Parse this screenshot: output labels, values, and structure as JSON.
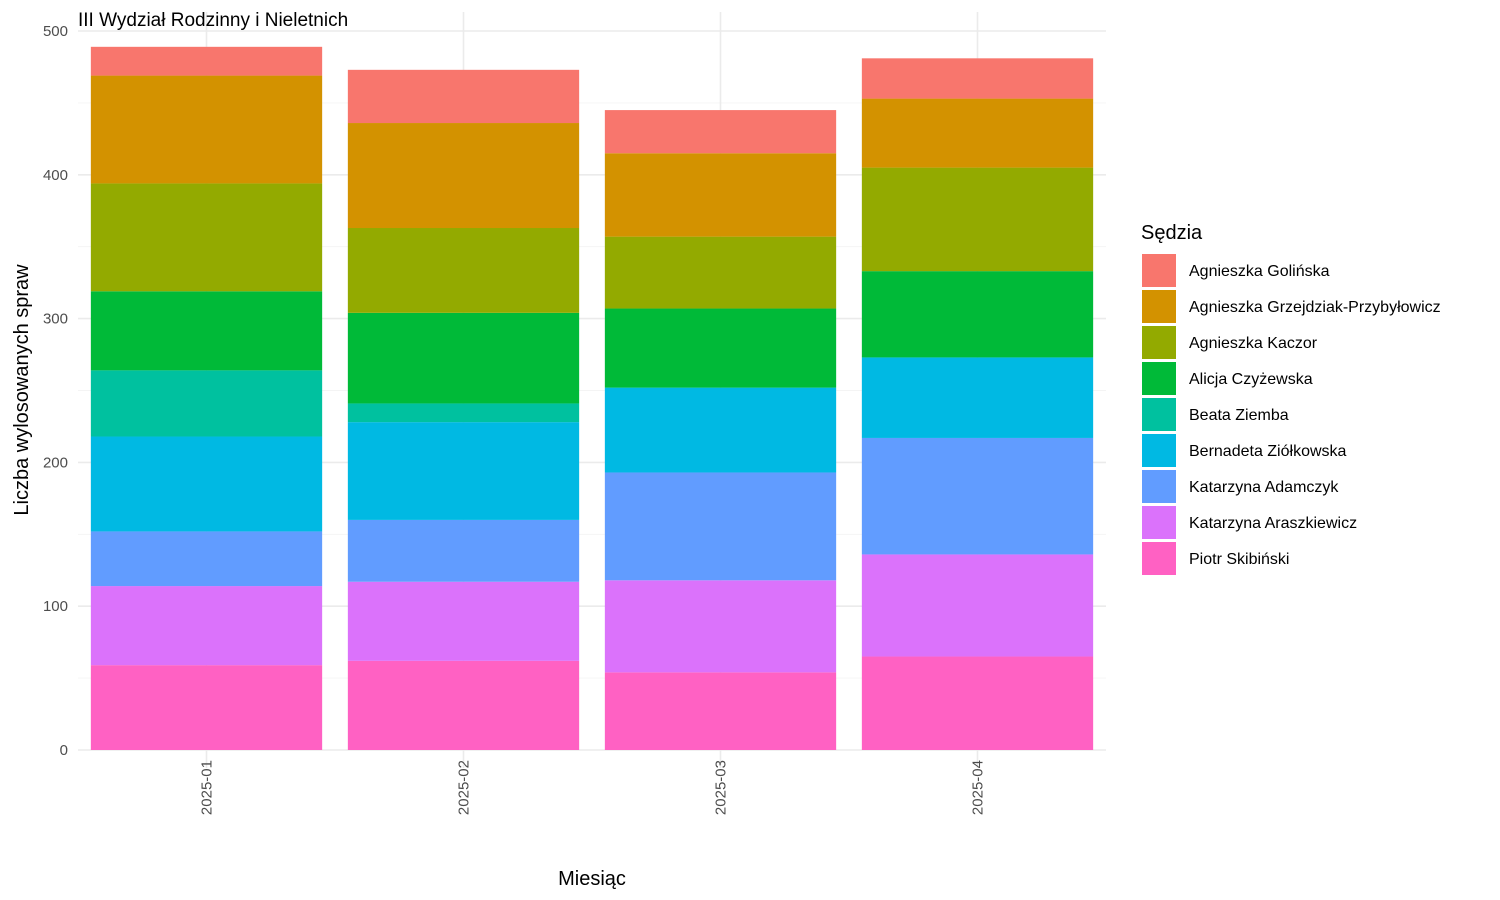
{
  "chart_data": {
    "type": "bar",
    "stacked": true,
    "title": "III Wydział Rodzinny i Nieletnich",
    "xlabel": "Miesiąc",
    "ylabel": "Liczba wylosowanych spraw",
    "ylim": [
      0,
      500
    ],
    "yticks": [
      0,
      100,
      200,
      300,
      400,
      500
    ],
    "grid": true,
    "legend_title": "Sędzia",
    "legend_position": "right",
    "categories": [
      "2025-01",
      "2025-02",
      "2025-03",
      "2025-04"
    ],
    "series": [
      {
        "name": "Agnieszka Golińska",
        "color": "#F8766D",
        "values": [
          20,
          37,
          30,
          28
        ]
      },
      {
        "name": "Agnieszka Grzejdziak-Przybyłowicz",
        "color": "#D39200",
        "values": [
          75,
          73,
          58,
          48
        ]
      },
      {
        "name": "Agnieszka Kaczor",
        "color": "#93AA00",
        "values": [
          75,
          59,
          50,
          72
        ]
      },
      {
        "name": "Alicja Czyżewska",
        "color": "#00BA38",
        "values": [
          55,
          63,
          55,
          60
        ]
      },
      {
        "name": "Beata Ziemba",
        "color": "#00C19F",
        "values": [
          46,
          13,
          0,
          0
        ]
      },
      {
        "name": "Bernadeta Ziółkowska",
        "color": "#00B9E3",
        "values": [
          66,
          68,
          59,
          56
        ]
      },
      {
        "name": "Katarzyna Adamczyk",
        "color": "#619CFF",
        "values": [
          38,
          43,
          75,
          81
        ]
      },
      {
        "name": "Katarzyna Araszkiewicz",
        "color": "#DB72FB",
        "values": [
          55,
          55,
          64,
          71
        ]
      },
      {
        "name": "Piotr Skibiński",
        "color": "#FF61C3",
        "values": [
          59,
          62,
          54,
          65
        ]
      }
    ]
  }
}
